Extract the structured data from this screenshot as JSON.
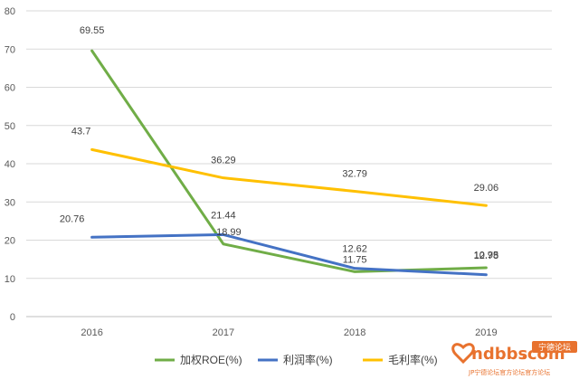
{
  "chart_data": {
    "type": "line",
    "categories": [
      "2016",
      "2017",
      "2018",
      "2019"
    ],
    "ylim": [
      0,
      80
    ],
    "yticks": [
      0,
      10,
      20,
      30,
      40,
      50,
      60,
      70,
      80
    ],
    "grid": true,
    "legend_position": "bottom",
    "series": [
      {
        "name": "加权ROE(%)",
        "color": "#70AD47",
        "values": [
          69.55,
          18.99,
          11.75,
          12.78
        ],
        "labels": [
          "69.55",
          "18.99",
          "11.75",
          "12.78"
        ]
      },
      {
        "name": "利润率(%)",
        "color": "#4472C4",
        "values": [
          20.76,
          21.44,
          12.62,
          10.95
        ],
        "labels": [
          "20.76",
          "21.44",
          "12.62",
          "10.95"
        ]
      },
      {
        "name": "毛利率(%)",
        "color": "#FFC000",
        "values": [
          43.7,
          36.29,
          32.79,
          29.06
        ],
        "labels": [
          "43.7",
          "36.29",
          "32.79",
          "29.06"
        ]
      }
    ]
  },
  "watermark": {
    "brand": "ndbbs",
    "domain": ".com",
    "badge": "宁德论坛",
    "tagline": "JP宁德论坛官方论坛官方论坛"
  }
}
